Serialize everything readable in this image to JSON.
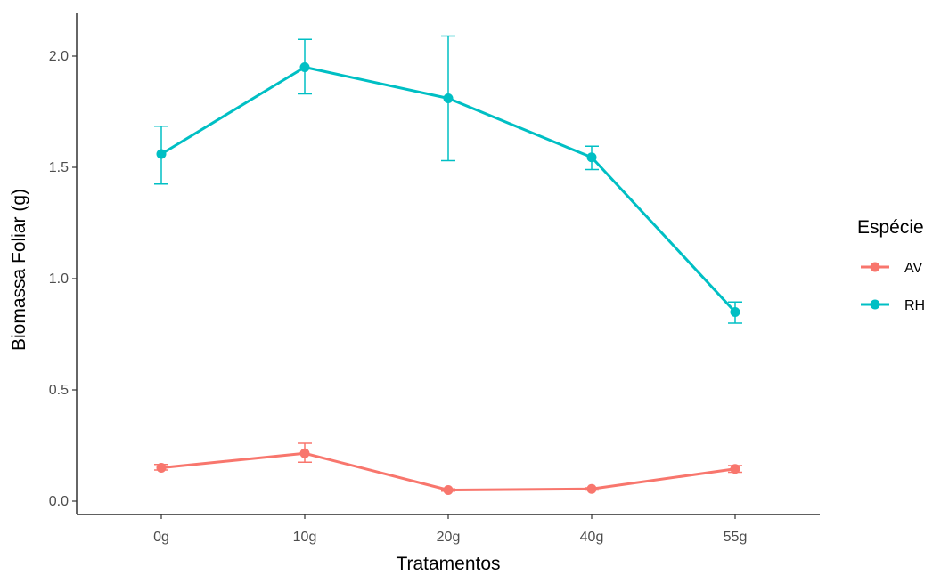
{
  "chart_data": {
    "type": "line",
    "title": "",
    "xlabel": "Tratamentos",
    "ylabel": "Biomassa Foliar (g)",
    "categories": [
      "0g",
      "10g",
      "20g",
      "40g",
      "55g"
    ],
    "ylim": [
      -0.05,
      2.2
    ],
    "yticks": [
      0.0,
      0.5,
      1.0,
      1.5,
      2.0
    ],
    "ytick_labels": [
      "0.0",
      "0.5",
      "1.0",
      "1.5",
      "2.0"
    ],
    "grid": false,
    "legend": {
      "title": "Espécie",
      "position": "right"
    },
    "series": [
      {
        "name": "AV",
        "color": "#F8766D",
        "values": [
          0.15,
          0.215,
          0.05,
          0.055,
          0.145
        ],
        "error_low": [
          0.14,
          0.175,
          0.045,
          0.05,
          0.13
        ],
        "error_high": [
          0.165,
          0.26,
          0.055,
          0.06,
          0.16
        ]
      },
      {
        "name": "RH",
        "color": "#00BFC4",
        "values": [
          1.56,
          1.95,
          1.81,
          1.545,
          0.85
        ],
        "error_low": [
          1.425,
          1.83,
          1.53,
          1.49,
          0.8
        ],
        "error_high": [
          1.685,
          2.075,
          2.09,
          1.595,
          0.895
        ]
      }
    ]
  }
}
